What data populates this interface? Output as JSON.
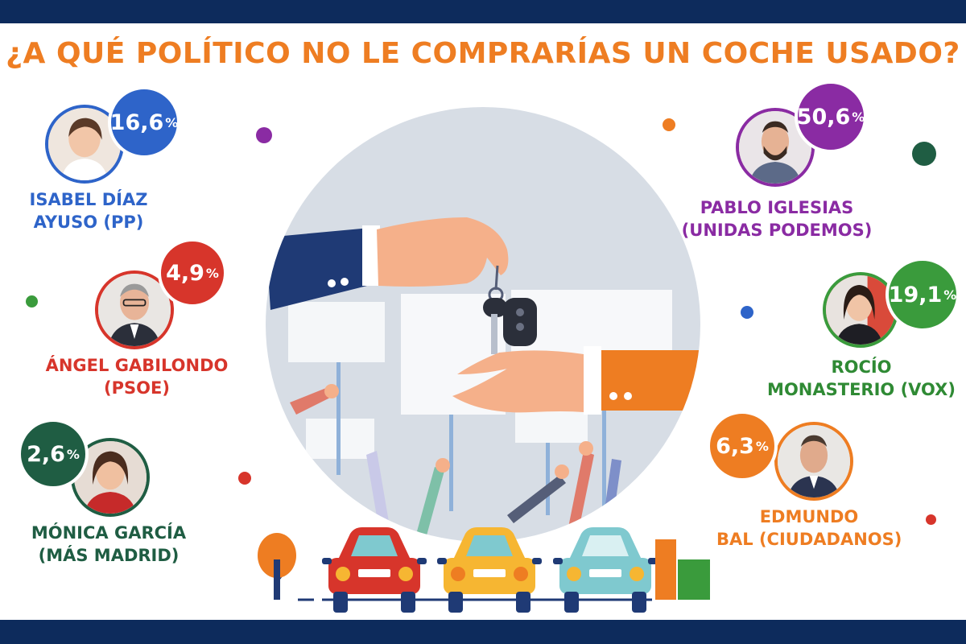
{
  "title": "¿A QUÉ POLÍTICO NO LE COMPRARÍAS UN COCHE USADO?",
  "colors": {
    "band": "#0d2b5c",
    "title": "#ee7d22",
    "pp": "#2e64c9",
    "psoe": "#d7352b",
    "mas_madrid": "#1f5d43",
    "podemos": "#8a2ba3",
    "vox": "#3a9b3c",
    "ciudadanos": "#ee7d22"
  },
  "chart_data": {
    "type": "bar",
    "title": "¿A QUÉ POLÍTICO NO LE COMPRARÍAS UN COCHE USADO?",
    "unit": "%",
    "categories": [
      "ISABEL DÍAZ AYUSO (PP)",
      "ÁNGEL GABILONDO (PSOE)",
      "MÓNICA GARCÍA (MÁS MADRID)",
      "PABLO IGLESIAS (UNIDAS PODEMOS)",
      "ROCÍO MONASTERIO (VOX)",
      "EDMUNDO BAL (CIUDADANOS)"
    ],
    "values": [
      16.6,
      4.9,
      2.6,
      50.6,
      19.1,
      6.3
    ],
    "value_labels": [
      "16,6",
      "4,9",
      "2,6",
      "50,6",
      "19,1",
      "6,3"
    ],
    "percent_sign": "%",
    "politicians": [
      {
        "name_line1": "ISABEL DÍAZ",
        "name_line2": "AYUSO (PP)",
        "value_label": "16,6",
        "value": 16.6,
        "color": "#2e64c9"
      },
      {
        "name_line1": "ÁNGEL GABILONDO",
        "name_line2": "(PSOE)",
        "value_label": "4,9",
        "value": 4.9,
        "color": "#d7352b"
      },
      {
        "name_line1": "MÓNICA GARCÍA",
        "name_line2": "(MÁS MADRID)",
        "value_label": "2,6",
        "value": 2.6,
        "color": "#1f5d43"
      },
      {
        "name_line1": "PABLO IGLESIAS",
        "name_line2": "(UNIDAS PODEMOS)",
        "value_label": "50,6",
        "value": 50.6,
        "color": "#8a2ba3"
      },
      {
        "name_line1": "ROCÍO",
        "name_line2": "MONASTERIO (VOX)",
        "value_label": "19,1",
        "value": 19.1,
        "color": "#3a9b3c"
      },
      {
        "name_line1": "EDMUNDO",
        "name_line2": "BAL (CIUDADANOS)",
        "value_label": "6,3",
        "value": 6.3,
        "color": "#ee7d22"
      }
    ]
  },
  "icons": {
    "photo": "person-portrait-icon",
    "illustration": "car-key-handover-illustration",
    "cars": "car-icon",
    "tree": "tree-icon"
  }
}
